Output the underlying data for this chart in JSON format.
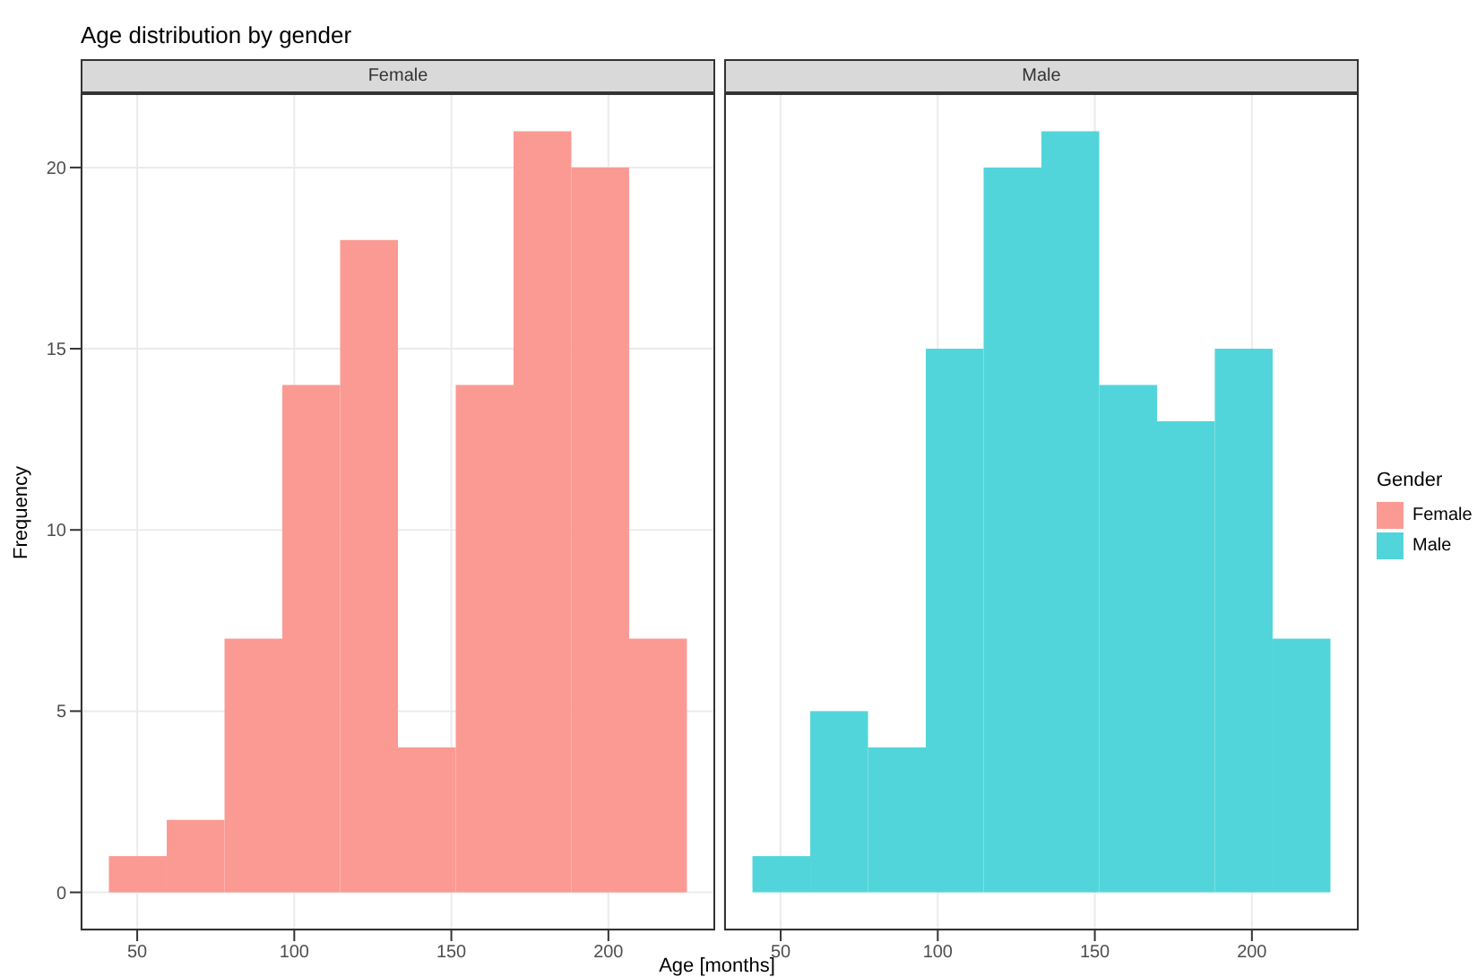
{
  "chart_data": [
    {
      "type": "histogram",
      "title": "Age distribution by gender",
      "subtitle": "Female",
      "ylabel": "Frequency",
      "bins": [
        41,
        59.4,
        77.8,
        96.2,
        114.6,
        133,
        151.4,
        169.8,
        188.2,
        206.6,
        225
      ],
      "series": [
        {
          "name": "Female",
          "color": "#fa9a93",
          "values": [
            1,
            2,
            7,
            14,
            18,
            4,
            14,
            21,
            20,
            7
          ]
        }
      ],
      "xlim": [
        32,
        234
      ],
      "xticks": [
        50,
        100,
        150,
        200
      ],
      "ylim": [
        -1.05,
        22.05
      ],
      "yticks": [
        0,
        5,
        10,
        15,
        20
      ],
      "grid": true,
      "legend": "right",
      "legend_title": "Gender"
    },
    {
      "type": "histogram",
      "subtitle": "Male",
      "xlabel": "Age [months]",
      "bins": [
        41,
        59.4,
        77.8,
        96.2,
        114.6,
        133,
        151.4,
        169.8,
        188.2,
        206.6,
        225
      ],
      "series": [
        {
          "name": "Male",
          "color": "#52d5da",
          "values": [
            1,
            5,
            4,
            15,
            20,
            21,
            14,
            13,
            15,
            7
          ]
        }
      ],
      "xlim": [
        32,
        234
      ],
      "xticks": [
        50,
        100,
        150,
        200
      ],
      "ylim": [
        -1.05,
        22.05
      ],
      "yticks": [
        0,
        5,
        10,
        15,
        20
      ],
      "grid": true,
      "legend": "right",
      "tick_labels": "x"
    }
  ]
}
